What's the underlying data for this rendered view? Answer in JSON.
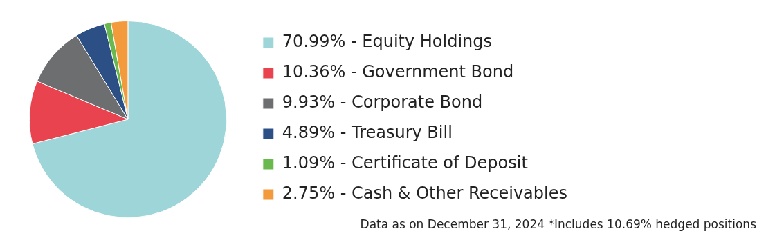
{
  "chart_data": {
    "type": "pie",
    "categories": [
      "70.99% - Equity Holdings",
      "10.36% - Government Bond",
      "9.93% - Corporate Bond",
      "4.89% - Treasury Bill",
      "1.09% - Certificate of Deposit",
      "2.75% - Cash & Other Receivables"
    ],
    "values": [
      70.99,
      10.36,
      9.93,
      4.89,
      1.09,
      2.75
    ],
    "colors": [
      "#9dd5d8",
      "#e8434f",
      "#6d6e70",
      "#2c4f86",
      "#6ab94f",
      "#f39a3c"
    ],
    "legend": "right",
    "annotations": [
      "Data as on December 31, 2024 *Includes 10.69% hedged positions"
    ]
  }
}
